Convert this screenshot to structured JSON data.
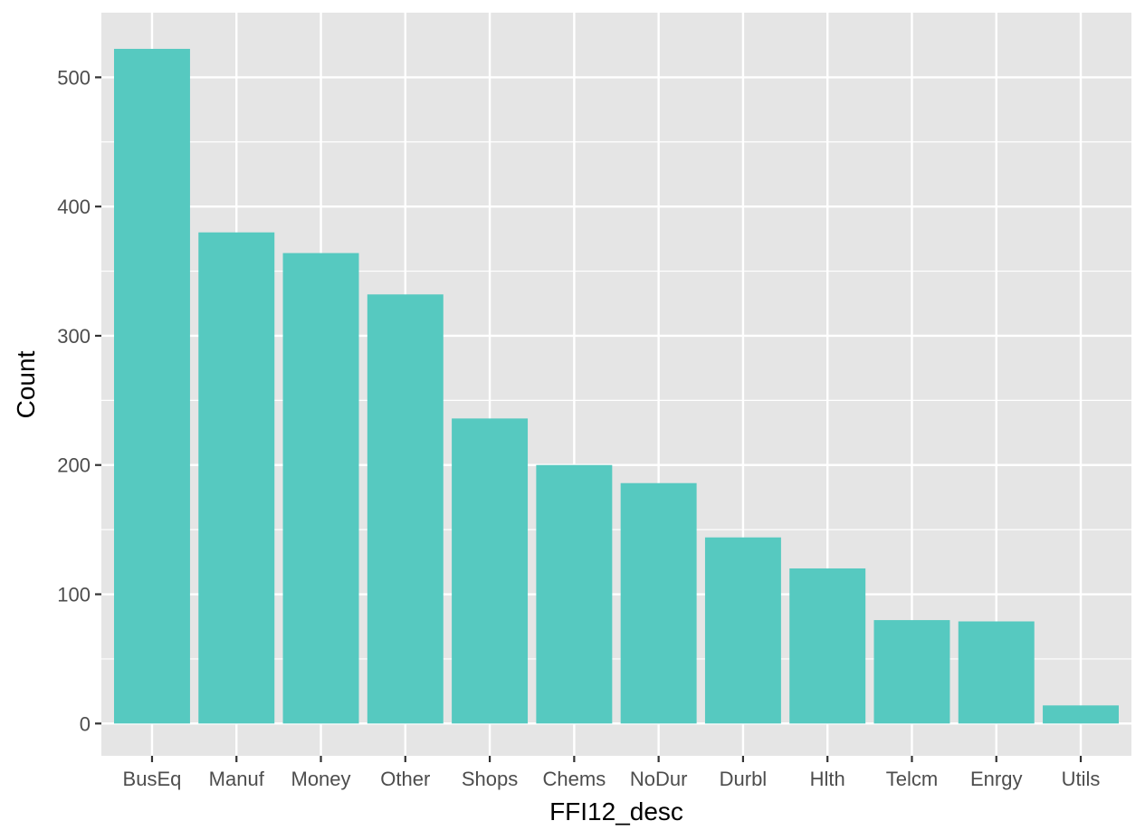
{
  "chart_data": {
    "type": "bar",
    "xlabel": "FFI12_desc",
    "ylabel": "Count",
    "categories": [
      "BusEq",
      "Manuf",
      "Money",
      "Other",
      "Shops",
      "Chems",
      "NoDur",
      "Durbl",
      "Hlth",
      "Telcm",
      "Enrgy",
      "Utils"
    ],
    "values": [
      522,
      380,
      364,
      332,
      236,
      200,
      186,
      144,
      120,
      80,
      79,
      14
    ],
    "ylim": [
      -25,
      550
    ],
    "yticks": [
      0,
      100,
      200,
      300,
      400,
      500
    ],
    "grid": true,
    "colors": {
      "bar": "#56c9c0",
      "panel": "#e5e5e5",
      "grid": "#ffffff"
    }
  }
}
